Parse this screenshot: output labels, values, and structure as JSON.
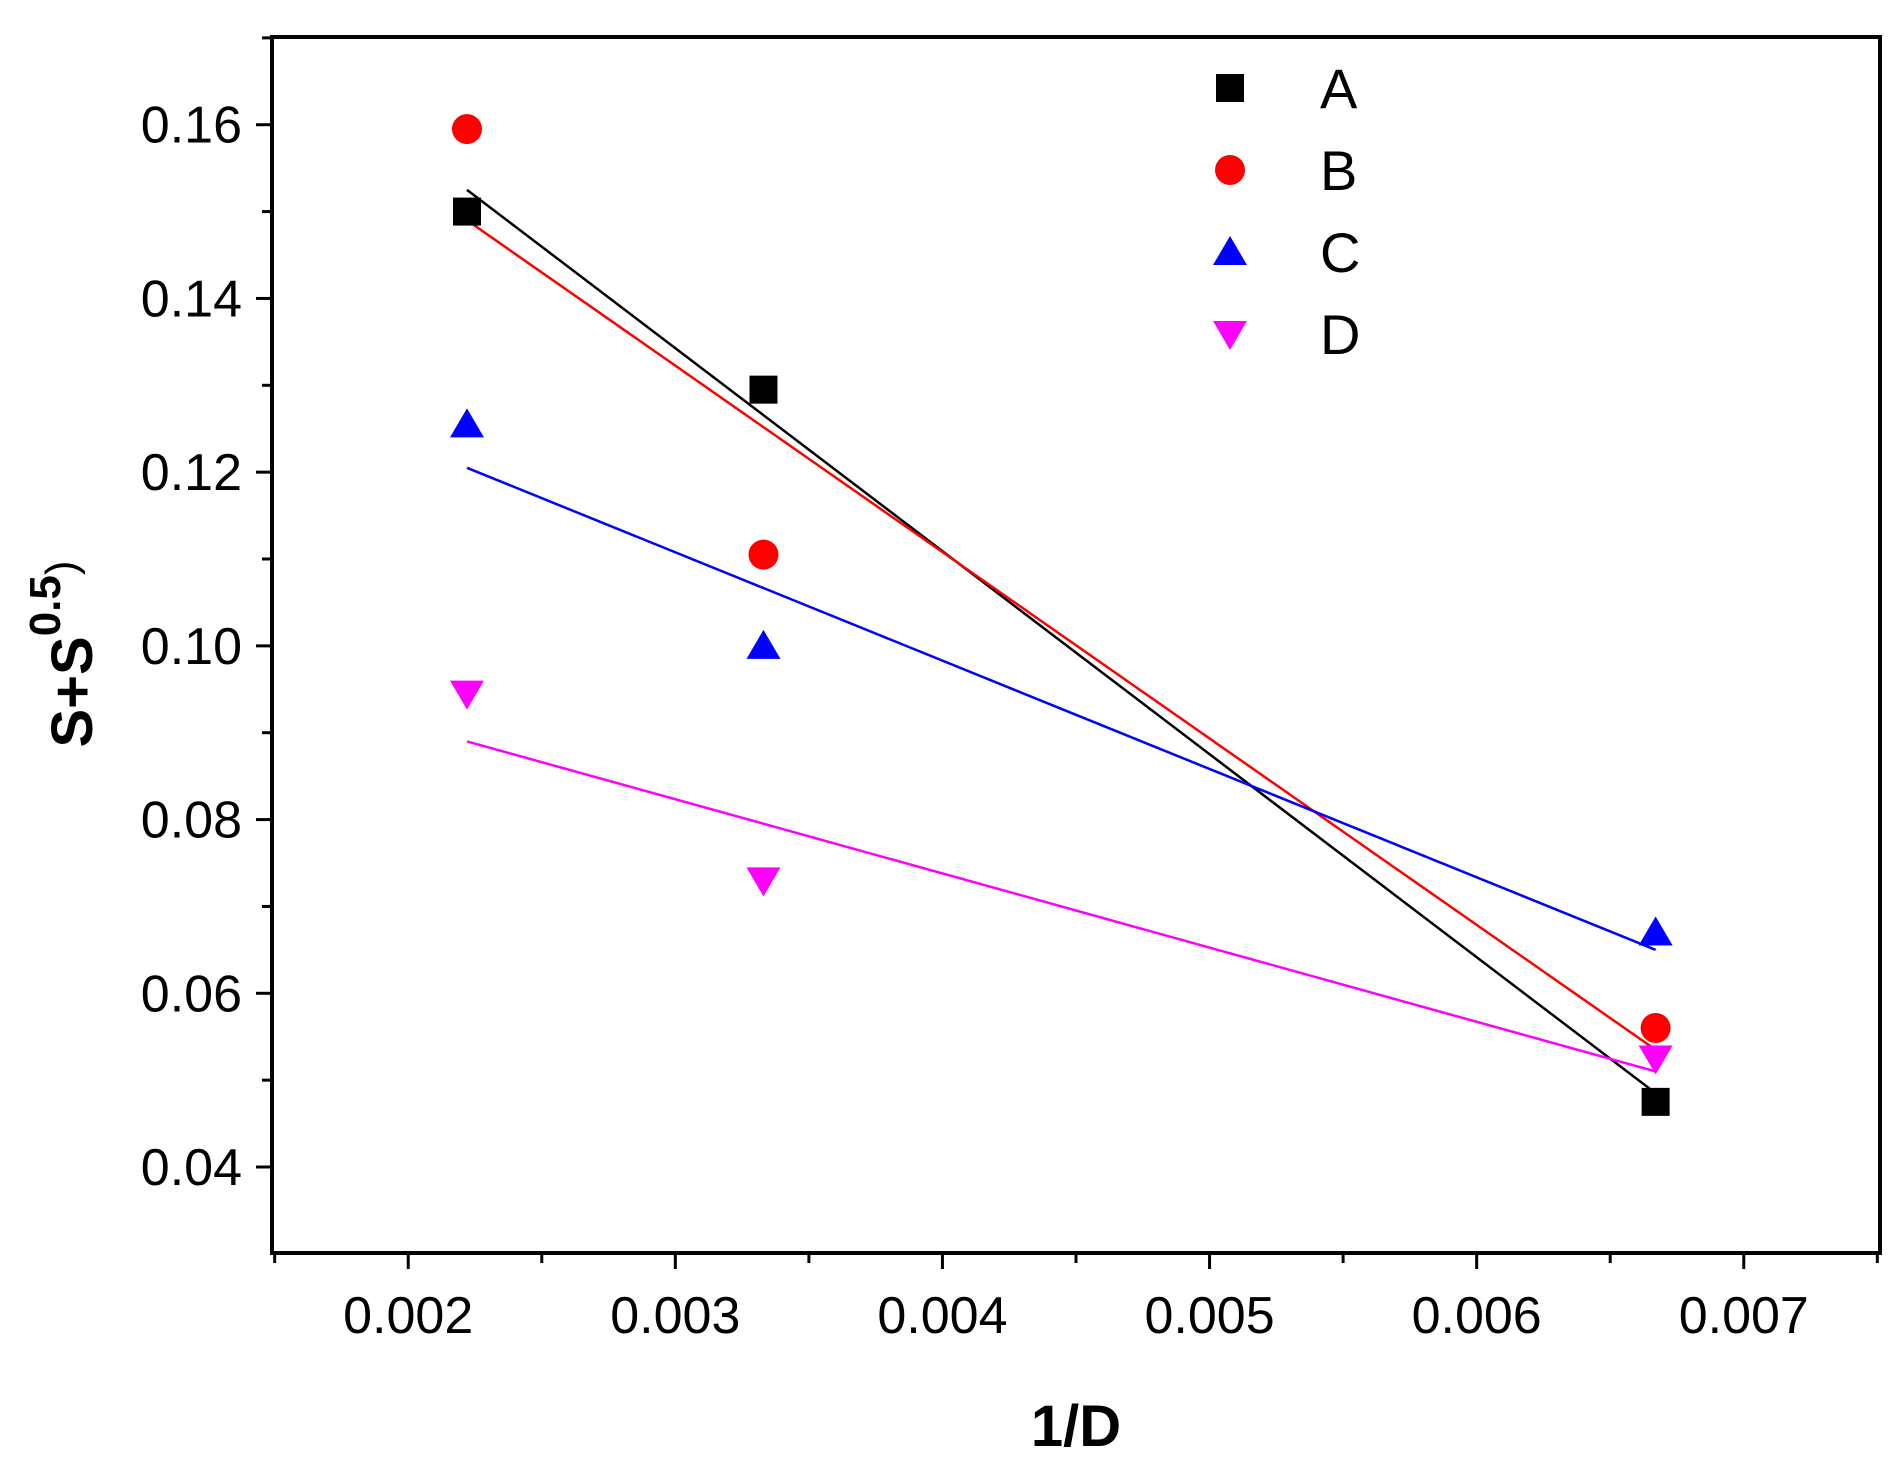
{
  "chart_data": {
    "type": "scatter",
    "title": "",
    "xlabel": "1/D",
    "ylabel": "S+S",
    "ylabel_superscript": "0.5",
    "ylabel_suffix": ")",
    "xlim": [
      0.00149,
      0.00751
    ],
    "ylim": [
      0.0301,
      0.1701
    ],
    "xticks": [
      "0.002",
      "0.003",
      "0.004",
      "0.005",
      "0.006",
      "0.007"
    ],
    "xtick_values": [
      0.002,
      0.003,
      0.004,
      0.005,
      0.006,
      0.007
    ],
    "yticks": [
      "0.04",
      "0.06",
      "0.08",
      "0.10",
      "0.12",
      "0.14",
      "0.16"
    ],
    "ytick_values": [
      0.04,
      0.06,
      0.08,
      0.1,
      0.12,
      0.14,
      0.16
    ],
    "grid": false,
    "legend_position": "top-right",
    "series": [
      {
        "name": "A",
        "marker": "square",
        "color": "#000000",
        "x": [
          0.00222,
          0.00333,
          0.00667
        ],
        "y": [
          0.15,
          0.1295,
          0.0475
        ],
        "fit": {
          "x": [
            0.00222,
            0.00667
          ],
          "y": [
            0.1525,
            0.0485
          ]
        }
      },
      {
        "name": "B",
        "marker": "circle",
        "color": "#ff0000",
        "x": [
          0.00222,
          0.00333,
          0.00667
        ],
        "y": [
          0.1595,
          0.1105,
          0.056
        ],
        "fit": {
          "x": [
            0.00222,
            0.00667
          ],
          "y": [
            0.149,
            0.0535
          ]
        }
      },
      {
        "name": "C",
        "marker": "triangle-up",
        "color": "#0000ff",
        "x": [
          0.00222,
          0.00333,
          0.00667
        ],
        "y": [
          0.1255,
          0.1,
          0.067
        ],
        "fit": {
          "x": [
            0.00222,
            0.00667
          ],
          "y": [
            0.1205,
            0.065
          ]
        }
      },
      {
        "name": "D",
        "marker": "triangle-down",
        "color": "#ff00ff",
        "x": [
          0.00222,
          0.00333,
          0.00667
        ],
        "y": [
          0.0945,
          0.073,
          0.0525
        ],
        "fit": {
          "x": [
            0.00222,
            0.00667
          ],
          "y": [
            0.089,
            0.051
          ]
        }
      }
    ]
  }
}
